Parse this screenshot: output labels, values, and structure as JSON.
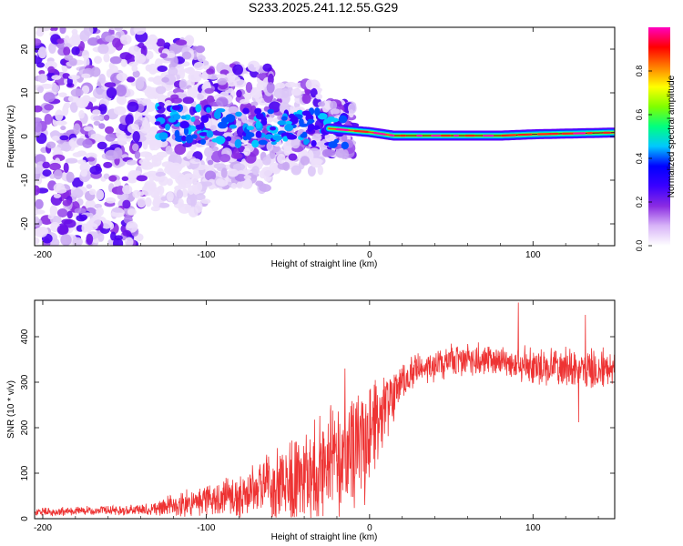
{
  "title": "S233.2025.241.12.55.G29",
  "chart_data": [
    {
      "type": "heatmap",
      "name": "spectrogram",
      "xlabel": "Height of straight line (km)",
      "ylabel": "Frequency (Hz)",
      "xlim": [
        -205,
        150
      ],
      "ylim": [
        -25,
        25
      ],
      "xticks": [
        -200,
        -100,
        0,
        100
      ],
      "yticks": [
        -20,
        -10,
        0,
        10,
        20
      ],
      "ridge": [
        {
          "x": -140,
          "y": 3.0
        },
        {
          "x": -100,
          "y": 2.5
        },
        {
          "x": -60,
          "y": 2.0
        },
        {
          "x": -30,
          "y": 2.0
        },
        {
          "x": -15,
          "y": 1.5
        },
        {
          "x": 0,
          "y": 1.0
        },
        {
          "x": 15,
          "y": 0.2
        },
        {
          "x": 80,
          "y": 0.2
        },
        {
          "x": 100,
          "y": 0.5
        },
        {
          "x": 150,
          "y": 0.9
        }
      ],
      "colorbar": {
        "label": "Normalized spectral amplitude",
        "range": [
          0,
          1
        ],
        "ticks": [
          0.0,
          0.2,
          0.4,
          0.6,
          0.8
        ],
        "tick_labels": [
          "0.0",
          "0.2",
          "0.4",
          "0.6",
          "0.8"
        ],
        "colors": [
          "#ffffff",
          "#d8b4f8",
          "#8a2be2",
          "#3a00ff",
          "#0000ff",
          "#00c8ff",
          "#00ff80",
          "#7fff00",
          "#ffff00",
          "#ff8000",
          "#ff0000",
          "#ff00c0"
        ]
      }
    },
    {
      "type": "line",
      "name": "snr",
      "xlabel": "Height of straight line (km)",
      "ylabel": "SNR (10 * v/v)",
      "xlim": [
        -205,
        150
      ],
      "ylim": [
        0,
        480
      ],
      "xticks": [
        -200,
        -100,
        0,
        100
      ],
      "yticks": [
        0,
        100,
        200,
        300,
        400
      ],
      "line_color": "#ee3333",
      "envelope": [
        {
          "x": -205,
          "mean": 15,
          "spread": 10
        },
        {
          "x": -140,
          "mean": 20,
          "spread": 12
        },
        {
          "x": -120,
          "mean": 30,
          "spread": 25
        },
        {
          "x": -100,
          "mean": 40,
          "spread": 40
        },
        {
          "x": -80,
          "mean": 55,
          "spread": 55
        },
        {
          "x": -60,
          "mean": 80,
          "spread": 70
        },
        {
          "x": -40,
          "mean": 110,
          "spread": 90
        },
        {
          "x": -20,
          "mean": 150,
          "spread": 110
        },
        {
          "x": -5,
          "mean": 190,
          "spread": 110
        },
        {
          "x": 10,
          "mean": 260,
          "spread": 60
        },
        {
          "x": 25,
          "mean": 320,
          "spread": 40
        },
        {
          "x": 50,
          "mean": 350,
          "spread": 35
        },
        {
          "x": 80,
          "mean": 345,
          "spread": 40
        },
        {
          "x": 110,
          "mean": 330,
          "spread": 45
        },
        {
          "x": 150,
          "mean": 330,
          "spread": 45
        }
      ],
      "peaks": [
        {
          "x": 91,
          "y": 475
        },
        {
          "x": 132,
          "y": 448
        },
        {
          "x": 128,
          "y": 212
        },
        {
          "x": -15,
          "y": 330
        },
        {
          "x": -3,
          "y": 30
        }
      ]
    }
  ]
}
